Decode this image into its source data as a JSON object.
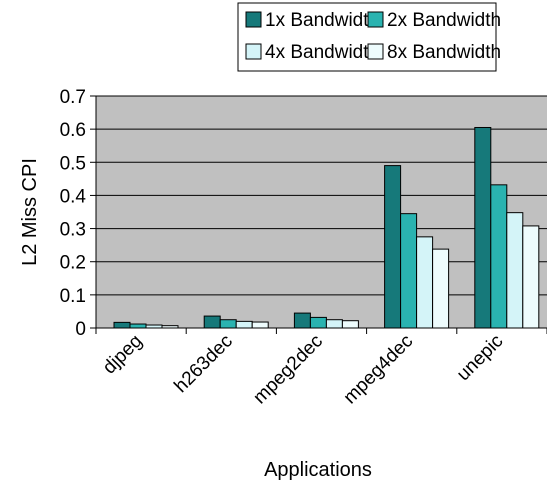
{
  "chart_data": {
    "type": "bar",
    "title": "",
    "xlabel": "Applications",
    "ylabel": "L2 Miss CPI",
    "ylim": [
      0,
      0.7
    ],
    "yticks": [
      "0",
      "0.1",
      "0.2",
      "0.3",
      "0.4",
      "0.5",
      "0.6",
      "0.7"
    ],
    "grid": true,
    "legend_position": "top",
    "categories": [
      "djpeg",
      "h263dec",
      "mpeg2dec",
      "mpeg4dec",
      "unepic"
    ],
    "series": [
      {
        "name": "1x Bandwidth",
        "color": "#16797a",
        "values": [
          0.017,
          0.036,
          0.045,
          0.49,
          0.605
        ]
      },
      {
        "name": "2x Bandwidth",
        "color": "#2ab3b0",
        "values": [
          0.012,
          0.025,
          0.032,
          0.345,
          0.432
        ]
      },
      {
        "name": "4x Bandwidth",
        "color": "#d4f4f8",
        "values": [
          0.009,
          0.02,
          0.025,
          0.275,
          0.348
        ]
      },
      {
        "name": "8x Bandwidth",
        "color": "#eefcfd",
        "values": [
          0.007,
          0.018,
          0.022,
          0.238,
          0.308
        ]
      }
    ],
    "plot_background": "#c0c0c0"
  }
}
